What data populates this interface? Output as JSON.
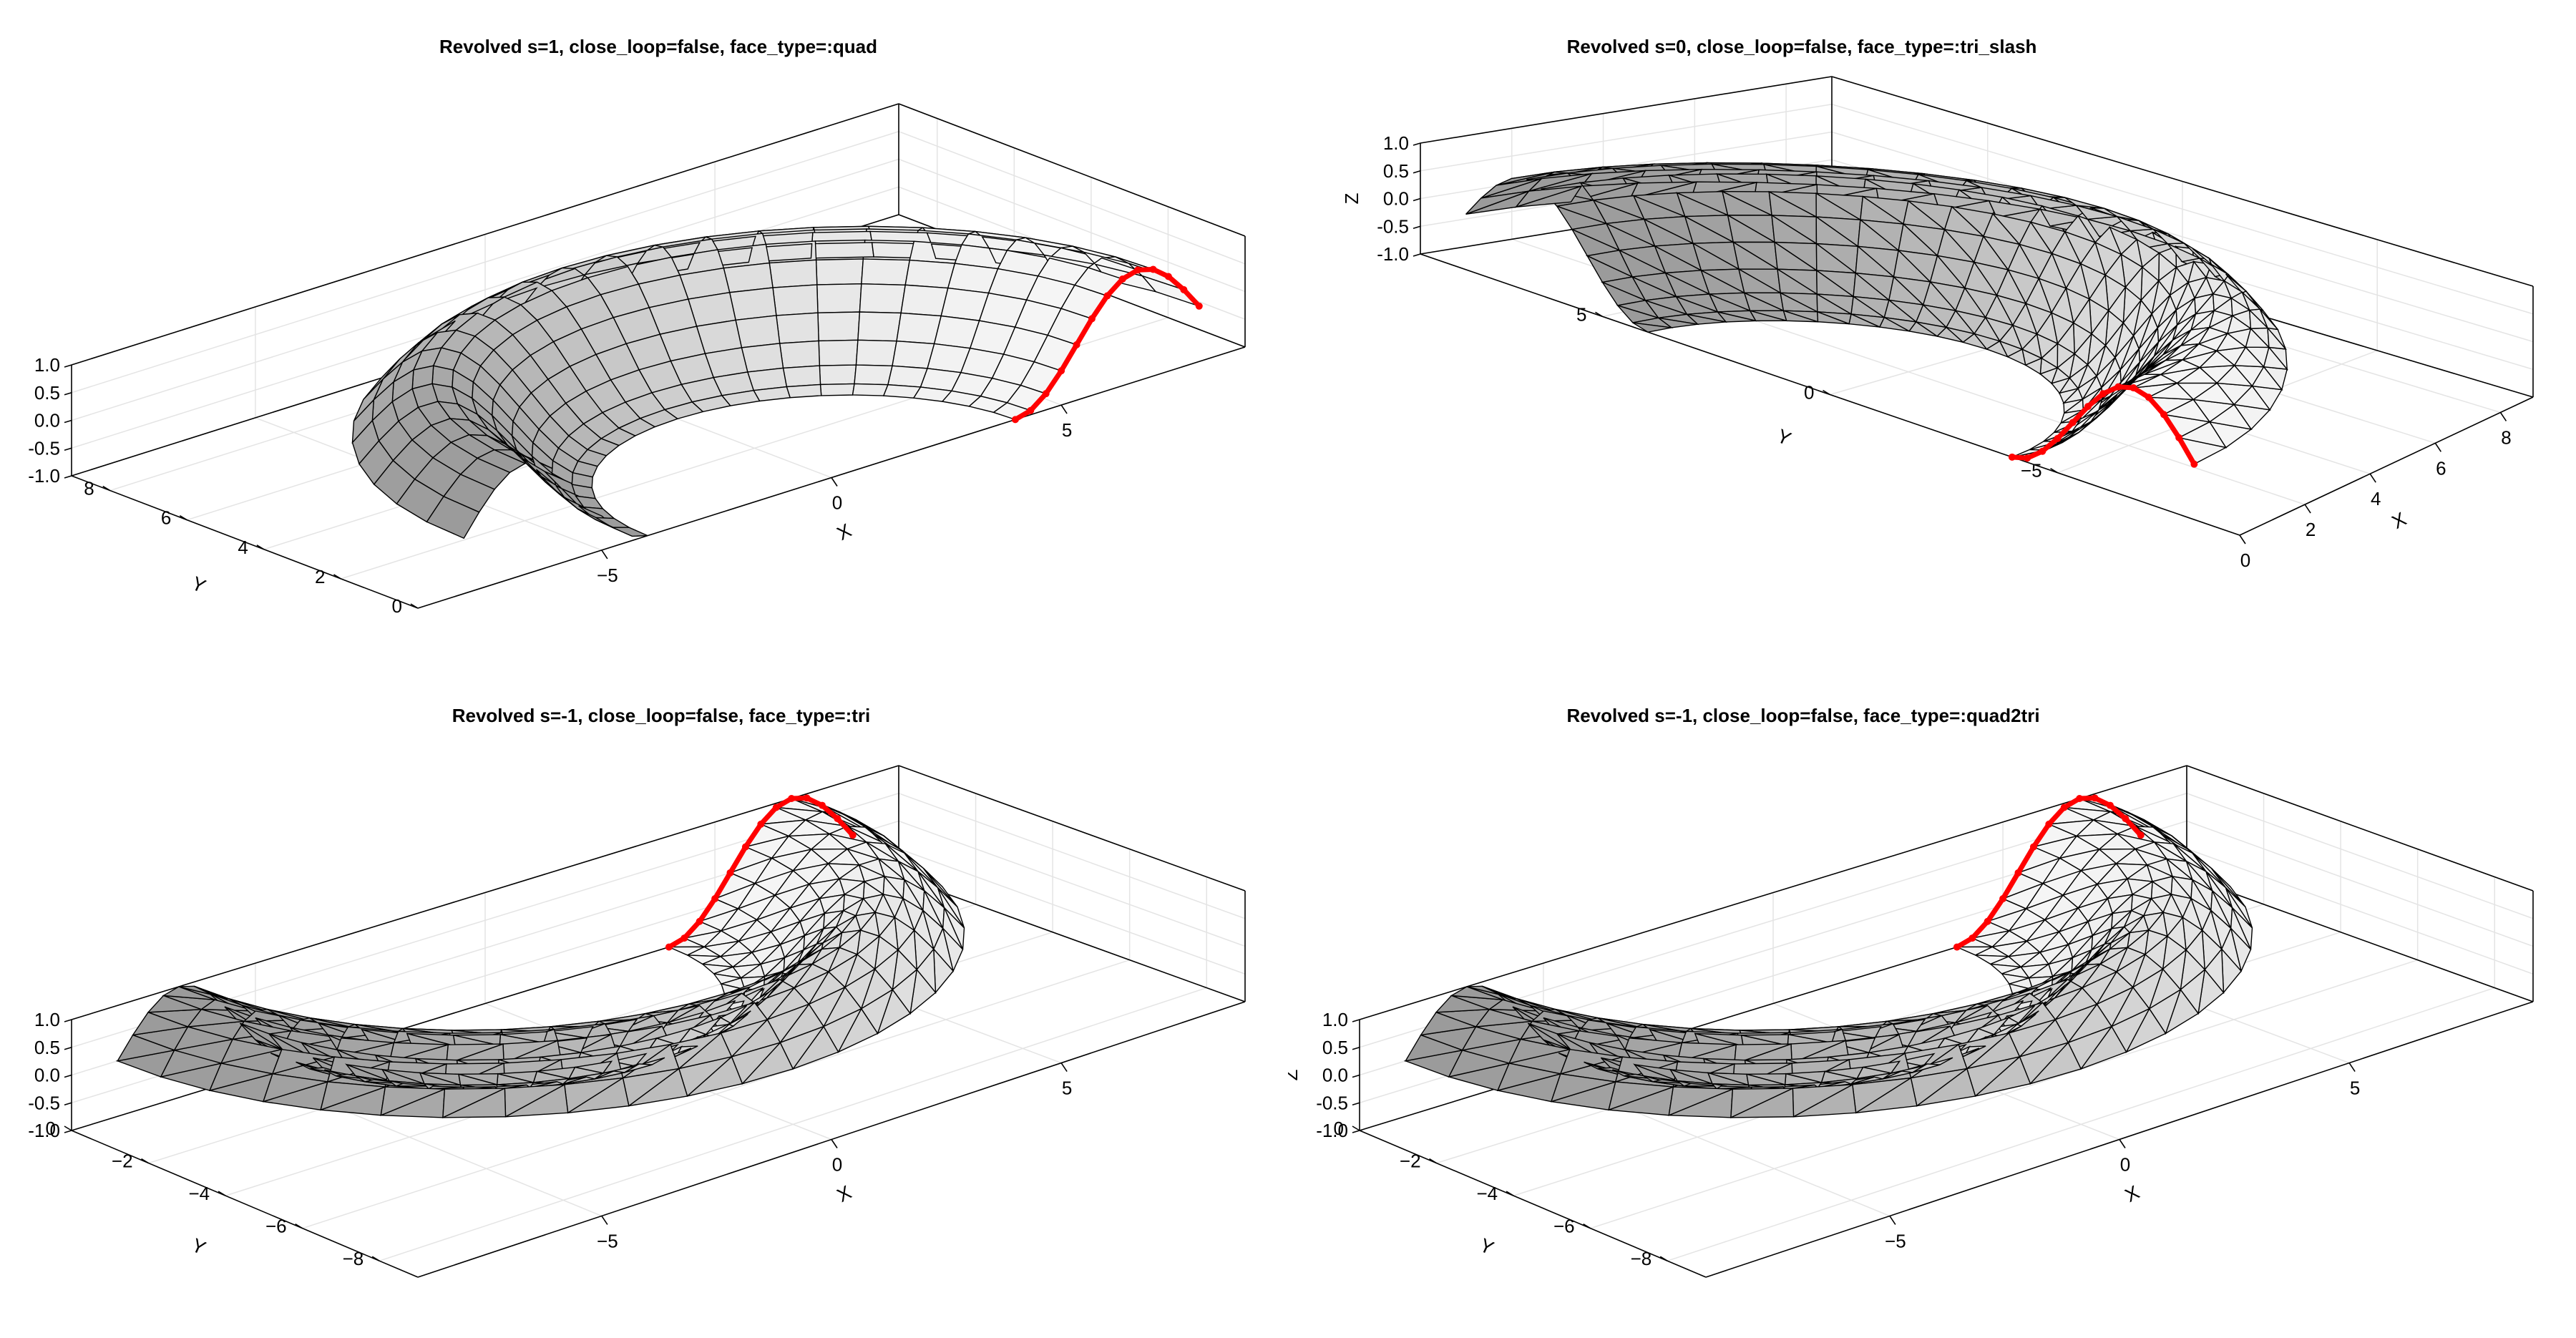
{
  "chart_data": [
    {
      "type": "surface3d",
      "title": "Revolved s=1, close_loop=false, face_type=:quad",
      "xlabel": "X",
      "ylabel": "Y",
      "zlabel": "",
      "xticks": [
        -5,
        0,
        5
      ],
      "yticks": [
        0,
        2,
        4,
        6,
        8
      ],
      "zticks": [
        "-1.0",
        "-0.5",
        "0.0",
        "0.5",
        "1.0"
      ],
      "xlim": [
        -9,
        9
      ],
      "ylim": [
        0,
        9
      ],
      "zlim": [
        -1,
        1
      ],
      "revolution_start_deg": 0,
      "revolution_end_deg": 180,
      "profile_radius_range": [
        4,
        8
      ],
      "face_type": "quad",
      "profile_curve_color": "#ff0000",
      "surface_color": "#d9d9d9",
      "edge_color": "#000000"
    },
    {
      "type": "surface3d",
      "title": "Revolved s=0, close_loop=false, face_type=:tri_slash",
      "xlabel": "X",
      "ylabel": "Y",
      "zlabel": "Z",
      "xticks": [
        0,
        2,
        4,
        6,
        8
      ],
      "yticks": [
        -5,
        0,
        5
      ],
      "zticks": [
        "-1.0",
        "-0.5",
        "0.0",
        "0.5",
        "1.0"
      ],
      "xlim": [
        0,
        9
      ],
      "ylim": [
        -9,
        9
      ],
      "zlim": [
        -1,
        1
      ],
      "revolution_start_deg": -90,
      "revolution_end_deg": 90,
      "profile_radius_range": [
        4,
        8
      ],
      "face_type": "tri_slash",
      "profile_curve_color": "#ff0000",
      "surface_color": "#d9d9d9",
      "edge_color": "#000000"
    },
    {
      "type": "surface3d",
      "title": "Revolved s=-1, close_loop=false, face_type=:tri",
      "xlabel": "X",
      "ylabel": "Y",
      "zlabel": "",
      "xticks": [
        -5,
        0,
        5
      ],
      "yticks": [
        0,
        -2,
        -4,
        -6,
        -8
      ],
      "zticks": [
        "-1.0",
        "-0.5",
        "0.0",
        "0.5",
        "1.0"
      ],
      "xlim": [
        -9,
        9
      ],
      "ylim": [
        -9,
        0
      ],
      "zlim": [
        -1,
        1
      ],
      "revolution_start_deg": 0,
      "revolution_end_deg": -180,
      "profile_radius_range": [
        4,
        8
      ],
      "face_type": "tri",
      "profile_curve_color": "#ff0000",
      "surface_color": "#d9d9d9",
      "edge_color": "#000000"
    },
    {
      "type": "surface3d",
      "title": "Revolved s=-1, close_loop=false, face_type=:quad2tri",
      "xlabel": "X",
      "ylabel": "Y",
      "zlabel": "Z",
      "xticks": [
        -5,
        0,
        5
      ],
      "yticks": [
        0,
        -2,
        -4,
        -6,
        -8
      ],
      "zticks": [
        "-1.0",
        "-0.5",
        "0.0",
        "0.5",
        "1.0"
      ],
      "xlim": [
        -9,
        9
      ],
      "ylim": [
        -9,
        0
      ],
      "zlim": [
        -1,
        1
      ],
      "revolution_start_deg": 0,
      "revolution_end_deg": -180,
      "profile_radius_range": [
        4,
        8
      ],
      "face_type": "quad2tri",
      "profile_curve_color": "#ff0000",
      "surface_color": "#d9d9d9",
      "edge_color": "#000000"
    }
  ]
}
